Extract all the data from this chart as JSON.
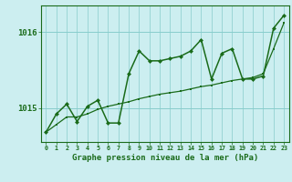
{
  "xlabel": "Graphe pression niveau de la mer (hPa)",
  "bg_color": "#cceef0",
  "line_color": "#1a6b1a",
  "grid_color": "#88cccc",
  "ylim": [
    1014.55,
    1016.35
  ],
  "xlim": [
    -0.5,
    23.5
  ],
  "yticks": [
    1015,
    1016
  ],
  "xticks": [
    0,
    1,
    2,
    3,
    4,
    5,
    6,
    7,
    8,
    9,
    10,
    11,
    12,
    13,
    14,
    15,
    16,
    17,
    18,
    19,
    20,
    21,
    22,
    23
  ],
  "hours": [
    0,
    1,
    2,
    3,
    4,
    5,
    6,
    7,
    8,
    9,
    10,
    11,
    12,
    13,
    14,
    15,
    16,
    17,
    18,
    19,
    20,
    21,
    22,
    23
  ],
  "series_smooth": [
    1014.68,
    1014.78,
    1014.88,
    1014.88,
    1014.92,
    1014.98,
    1015.02,
    1015.05,
    1015.08,
    1015.12,
    1015.15,
    1015.18,
    1015.2,
    1015.22,
    1015.25,
    1015.28,
    1015.3,
    1015.33,
    1015.36,
    1015.38,
    1015.4,
    1015.45,
    1015.78,
    1016.12
  ],
  "series_jagged": [
    1014.68,
    1014.92,
    1015.05,
    1014.82,
    1015.02,
    1015.1,
    1014.8,
    1014.8,
    1015.45,
    1015.75,
    1015.62,
    1015.62,
    1015.65,
    1015.68,
    1015.75,
    1015.9,
    1015.38,
    1015.72,
    1015.78,
    1015.38,
    1015.38,
    1015.42,
    1016.05,
    1016.22
  ]
}
